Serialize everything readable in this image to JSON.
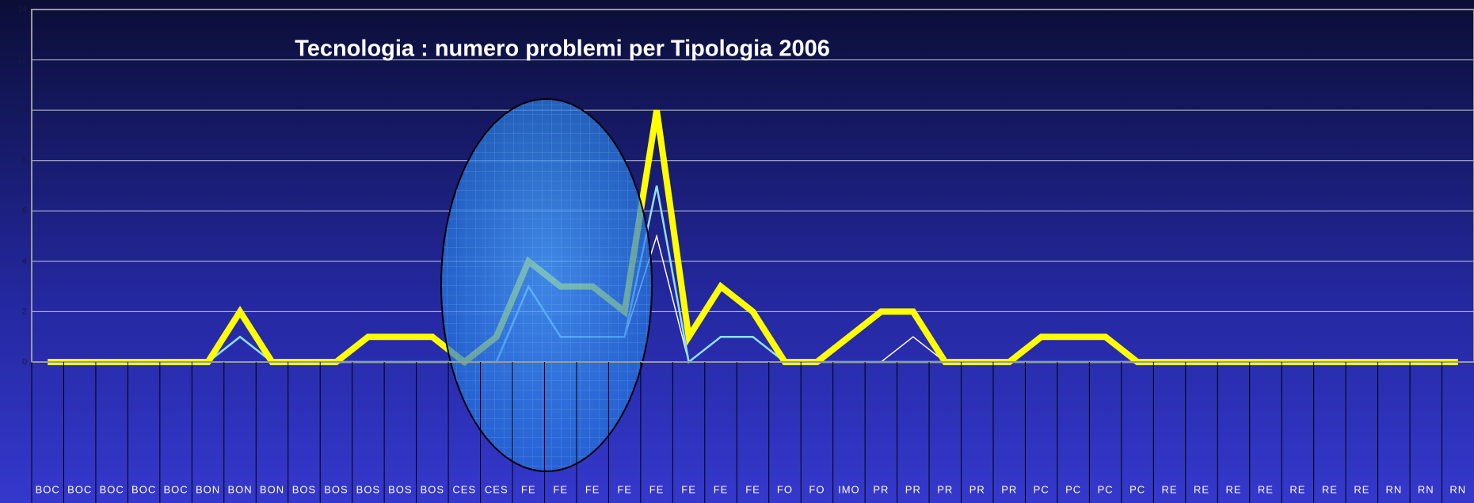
{
  "chart_data": {
    "type": "line",
    "title": "Tecnologia : numero problemi per Tipologia 2006",
    "categories": [
      "BOC",
      "BOC",
      "BOC",
      "BOC",
      "BOC",
      "BON",
      "BON",
      "BON",
      "BOS",
      "BOS",
      "BOS",
      "BOS",
      "BOS",
      "CES",
      "CES",
      "FE",
      "FE",
      "FE",
      "FE",
      "FE",
      "FE",
      "FE",
      "FE",
      "FO",
      "FO",
      "IMO",
      "PR",
      "PR",
      "PR",
      "PR",
      "PR",
      "PC",
      "PC",
      "PC",
      "PC",
      "RE",
      "RE",
      "RE",
      "RE",
      "RE",
      "RE",
      "RE",
      "RN",
      "RN",
      "RN"
    ],
    "series": [
      {
        "color": "#ffffff",
        "values": [
          0,
          0,
          0,
          0,
          0,
          0,
          1,
          0,
          0,
          0,
          0,
          0,
          0,
          0,
          0,
          3,
          1,
          1,
          1,
          5,
          0,
          1,
          1,
          0,
          0,
          0,
          0,
          1,
          0,
          0,
          0,
          1,
          1,
          1,
          0,
          0,
          0,
          0,
          0,
          0,
          0,
          0,
          0,
          0,
          0
        ]
      },
      {
        "color": "#8fe0ff",
        "values": [
          0,
          0,
          0,
          0,
          0,
          0,
          1,
          0,
          0,
          0,
          0,
          0,
          0,
          0,
          0,
          3,
          1,
          1,
          1,
          7,
          0,
          1,
          1,
          0,
          0,
          0,
          0,
          0,
          0,
          0,
          0,
          0,
          0,
          0,
          0,
          0,
          0,
          0,
          0,
          0,
          0,
          0,
          0,
          0,
          0
        ]
      },
      {
        "color": "#ffff00",
        "values": [
          0,
          0,
          0,
          0,
          0,
          0,
          2,
          0,
          0,
          0,
          1,
          1,
          1,
          0,
          1,
          4,
          3,
          3,
          2,
          10,
          1,
          3,
          2,
          0,
          0,
          1,
          2,
          2,
          0,
          0,
          0,
          1,
          1,
          1,
          0,
          0,
          0,
          0,
          0,
          0,
          0,
          0,
          0,
          0,
          0
        ]
      }
    ],
    "ylim": [
      0,
      14
    ],
    "yticks": [
      0,
      2,
      4,
      6,
      8,
      10,
      12,
      14
    ],
    "grid": true
  }
}
